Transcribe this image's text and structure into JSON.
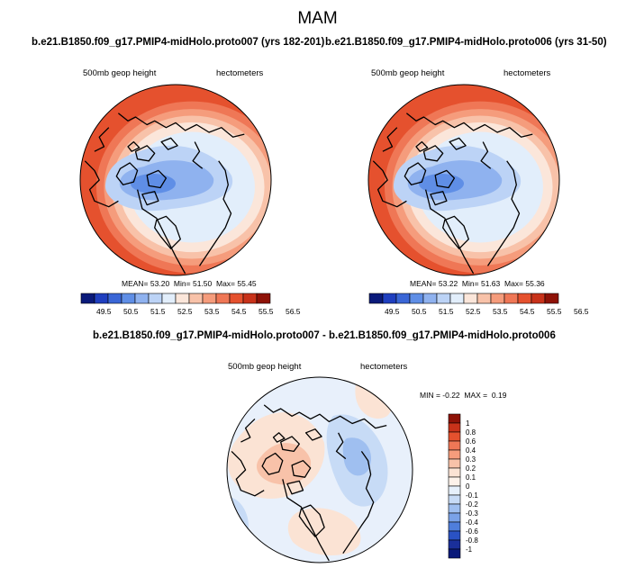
{
  "figure": {
    "season": "MAM",
    "panels": [
      {
        "id": "proto007",
        "title": "b.e21.B1850.f09_g17.PMIP4-midHolo.proto007 (yrs 182-201)",
        "variable": "500mb geop height",
        "units": "hectometers",
        "stats": {
          "mean_label": "MEAN=",
          "mean": "53.20",
          "min_label": "Min=",
          "min": "51.50",
          "max_label": "Max=",
          "max": "55.45"
        }
      },
      {
        "id": "proto006",
        "title": "b.e21.B1850.f09_g17.PMIP4-midHolo.proto006 (yrs 31-50)",
        "variable": "500mb geop height",
        "units": "hectometers",
        "stats": {
          "mean_label": "MEAN=",
          "mean": "53.22",
          "min_label": "Min=",
          "min": "51.63",
          "max_label": "Max=",
          "max": "55.36"
        }
      }
    ],
    "colorbar": {
      "labels": [
        "49.5",
        "50.5",
        "51.5",
        "52.5",
        "53.5",
        "54.5",
        "55.5",
        "56.5"
      ],
      "colors": [
        "#0a1a7a",
        "#1f3fbf",
        "#3a66d6",
        "#5f8ee6",
        "#8fb2ef",
        "#bcd3f6",
        "#e2eefb",
        "#fbe6da",
        "#f8c2a9",
        "#f59c7c",
        "#ef7756",
        "#e5512e",
        "#c8321a",
        "#8e1207"
      ]
    },
    "difference": {
      "title": "b.e21.B1850.f09_g17.PMIP4-midHolo.proto007 - b.e21.B1850.f09_g17.PMIP4-midHolo.proto006",
      "variable": "500mb geop height",
      "units": "hectometers",
      "stats": {
        "min_label": "MIN =",
        "min": "-0.22",
        "max_label": "MAX =",
        "max": "0.19"
      },
      "colorbar": {
        "labels": [
          "1",
          "0.8",
          "0.6",
          "0.4",
          "0.3",
          "0.2",
          "0.1",
          "0",
          "-0.1",
          "-0.2",
          "-0.3",
          "-0.4",
          "-0.6",
          "-0.8",
          "-1"
        ],
        "colors": [
          "#8e1207",
          "#c8321a",
          "#e5512e",
          "#ef7756",
          "#f59c7c",
          "#f8c2a9",
          "#fbe3d4",
          "#fdf2ea",
          "#e6f0fb",
          "#c7dbf6",
          "#9fbff0",
          "#7aa2e8",
          "#4f7edc",
          "#2a52c4",
          "#1a2f9a",
          "#0a1a7a"
        ]
      }
    }
  }
}
